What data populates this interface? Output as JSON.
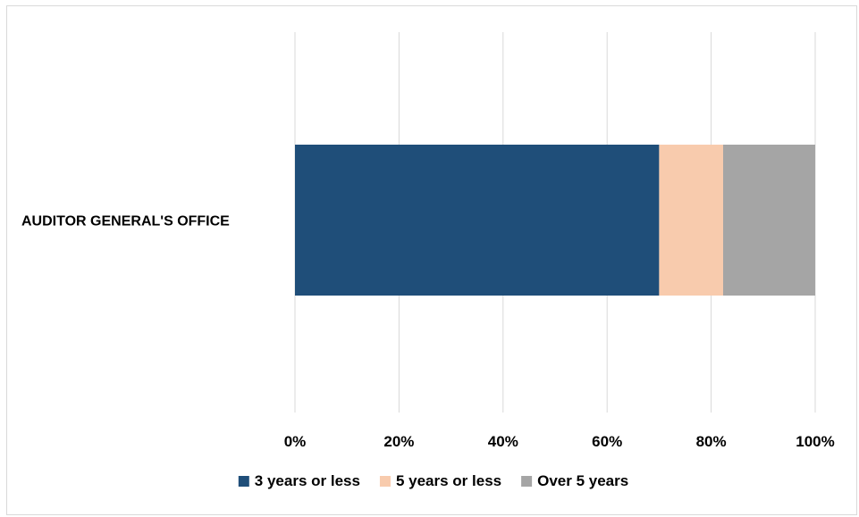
{
  "chart_data": {
    "type": "bar",
    "orientation": "horizontal",
    "stacked": "percent",
    "categories": [
      "AUDITOR GENERAL'S OFFICE"
    ],
    "series": [
      {
        "name": "3 years or less",
        "values": [
          70
        ],
        "color": "#1f4e79"
      },
      {
        "name": "5 years or less",
        "values": [
          12.3
        ],
        "color": "#f8cbad"
      },
      {
        "name": "Over 5 years",
        "values": [
          17.7
        ],
        "color": "#a5a5a5"
      }
    ],
    "x_ticks": [
      "0%",
      "20%",
      "40%",
      "60%",
      "80%",
      "100%"
    ],
    "xlim": [
      0,
      100
    ],
    "grid": "vertical",
    "legend": "bottom-center",
    "title": "",
    "xlabel": "",
    "ylabel": ""
  }
}
